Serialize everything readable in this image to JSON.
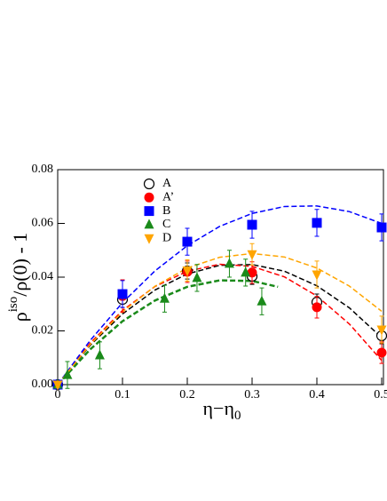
{
  "chart_data": {
    "type": "scatter",
    "y_label": "ρ",
    "y_label_sup": "iso",
    "y_label_rest": "/ρ(0) - 1",
    "x_label": "η−η",
    "x_label_sub": "0",
    "xlim": [
      0,
      0.5
    ],
    "ylim": [
      0,
      0.08
    ],
    "xticks": [
      0,
      0.1,
      0.2,
      0.3,
      0.4,
      0.5
    ],
    "yticks": [
      {
        "value": 0,
        "label": "0.00"
      },
      {
        "value": 0.02,
        "label": "0.02"
      },
      {
        "value": 0.04,
        "label": "0.04"
      },
      {
        "value": 0.06,
        "label": "0.06"
      },
      {
        "value": 0.08,
        "label": "0.08"
      }
    ],
    "series": [
      {
        "name": "A",
        "color": "#000000",
        "marker": "open-circle",
        "x": [
          0,
          0.1,
          0.2,
          0.3,
          0.4,
          0.5
        ],
        "values": [
          0,
          0.0317,
          0.0423,
          0.0403,
          0.0307,
          0.0182
        ],
        "errors": [
          0.001,
          0.003,
          0.003,
          0.003,
          0.003,
          0.003
        ]
      },
      {
        "name": "A’",
        "color": "#ff0000",
        "marker": "circle",
        "x": [
          0,
          0.1,
          0.2,
          0.3,
          0.4,
          0.5
        ],
        "values": [
          0,
          0.033,
          0.042,
          0.0417,
          0.0288,
          0.0119
        ],
        "errors": [
          0.001,
          0.006,
          0.004,
          0.004,
          0.004,
          0.004
        ]
      },
      {
        "name": "B",
        "color": "#0000ff",
        "marker": "square",
        "x": [
          0,
          0.1,
          0.2,
          0.3,
          0.4,
          0.5
        ],
        "values": [
          0,
          0.0337,
          0.0532,
          0.0595,
          0.0602,
          0.0585
        ],
        "errors": [
          0.001,
          0.005,
          0.005,
          0.005,
          0.005,
          0.005
        ]
      },
      {
        "name": "C",
        "color": "#1a8a1a",
        "marker": "triangle-up",
        "x": [
          0,
          0.015,
          0.065,
          0.165,
          0.215,
          0.265,
          0.29,
          0.315
        ],
        "values": [
          0,
          0.0036,
          0.0109,
          0.032,
          0.0397,
          0.045,
          0.0417,
          0.031
        ],
        "errors": [
          0.001,
          0.005,
          0.005,
          0.005,
          0.005,
          0.005,
          0.005,
          0.005
        ]
      },
      {
        "name": "D",
        "color": "#ffa500",
        "marker": "triangle-down",
        "x": [
          0,
          0.2,
          0.3,
          0.4,
          0.5
        ],
        "values": [
          0,
          0.0425,
          0.0485,
          0.041,
          0.0205
        ],
        "errors": [
          0.001,
          0.004,
          0.004,
          0.005,
          0.005
        ]
      }
    ],
    "fits": [
      {
        "color": "#000000",
        "width": 1.5,
        "x": [
          0,
          0.05,
          0.1,
          0.15,
          0.2,
          0.25,
          0.3,
          0.35,
          0.4,
          0.45,
          0.5
        ],
        "values": [
          0,
          0.0146,
          0.0263,
          0.0352,
          0.0412,
          0.0444,
          0.0447,
          0.0422,
          0.0368,
          0.0286,
          0.0175
        ]
      },
      {
        "color": "#ff0000",
        "width": 1.5,
        "x": [
          0,
          0.05,
          0.1,
          0.15,
          0.2,
          0.25,
          0.3,
          0.35,
          0.4,
          0.45,
          0.5
        ],
        "values": [
          0,
          0.0154,
          0.0276,
          0.0365,
          0.0422,
          0.0448,
          0.044,
          0.0401,
          0.033,
          0.0226,
          0.009
        ]
      },
      {
        "color": "#0000ff",
        "width": 1.5,
        "x": [
          0,
          0.05,
          0.1,
          0.15,
          0.2,
          0.25,
          0.3,
          0.35,
          0.4,
          0.45,
          0.5
        ],
        "values": [
          0,
          0.0164,
          0.0305,
          0.0423,
          0.0517,
          0.0589,
          0.0637,
          0.0663,
          0.0665,
          0.0644,
          0.06
        ]
      },
      {
        "color": "#1a8a1a",
        "width": 2.5,
        "x": [
          0,
          0.05,
          0.1,
          0.15,
          0.2,
          0.25,
          0.3,
          0.34
        ],
        "values": [
          0,
          0.0131,
          0.0236,
          0.0313,
          0.0364,
          0.0388,
          0.0386,
          0.0364
        ]
      },
      {
        "color": "#ffa500",
        "width": 1.5,
        "x": [
          0,
          0.05,
          0.1,
          0.15,
          0.2,
          0.25,
          0.3,
          0.35,
          0.4,
          0.45,
          0.5
        ],
        "values": [
          0,
          0.0149,
          0.0271,
          0.0366,
          0.0434,
          0.0474,
          0.0488,
          0.0475,
          0.0434,
          0.0367,
          0.0273
        ]
      }
    ]
  }
}
